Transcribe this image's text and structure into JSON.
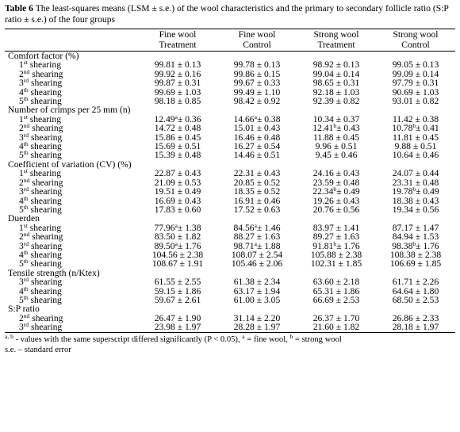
{
  "caption": {
    "label": "Table 6",
    "text": "The least-squares means (LSM ± s.e.) of the wool characteristics and the primary to secondary follicle ratio (S:P ratio ± s.e.) of the four groups"
  },
  "headers": [
    [
      "",
      ""
    ],
    [
      "Fine wool",
      "Treatment"
    ],
    [
      "Fine wool",
      "Control"
    ],
    [
      "Strong wool",
      "Treatment"
    ],
    [
      "Strong wool",
      "Control"
    ]
  ],
  "sections": [
    {
      "title": "Comfort factor (%)",
      "rows": [
        {
          "n": "1",
          "sup": "st",
          "values": [
            "99.81 ± 0.13",
            "99.78 ± 0.13",
            "98.92 ± 0.13",
            "99.05 ± 0.13"
          ]
        },
        {
          "n": "2",
          "sup": "nd",
          "values": [
            "99.92 ± 0.16",
            "99.86 ± 0.15",
            "99.04 ± 0.14",
            "99.09 ± 0.14"
          ]
        },
        {
          "n": "3",
          "sup": "rd",
          "values": [
            "99.87 ± 0.31",
            "99.67 ± 0.33",
            "98.65 ± 0.31",
            "97.79 ± 0.31"
          ]
        },
        {
          "n": "4",
          "sup": "th",
          "values": [
            "99.69 ± 1.03",
            "99.49 ± 1.10",
            "92.18 ± 1.03",
            "90.69 ± 1.03"
          ]
        },
        {
          "n": "5",
          "sup": "th",
          "values": [
            "98.18 ± 0.85",
            "98.42 ± 0.92",
            "92.39 ± 0.82",
            "93.01 ± 0.82"
          ]
        }
      ]
    },
    {
      "title": "Number of crimps per 25 mm (n)",
      "rows": [
        {
          "n": "1",
          "sup": "st",
          "values": [
            "12.49ᵃ± 0.36",
            "14.66ᵃ± 0.38",
            "10.34 ± 0.37",
            "11.42 ± 0.38"
          ]
        },
        {
          "n": "2",
          "sup": "nd",
          "values": [
            "14.72 ± 0.48",
            "15.01 ± 0.43",
            "12.41ᵇ± 0.43",
            "10.78ᵇ± 0.41"
          ]
        },
        {
          "n": "3",
          "sup": "rd",
          "values": [
            "15.86 ± 0.45",
            "16.46 ± 0.48",
            "11.88 ± 0.45",
            "11.81 ± 0.45"
          ]
        },
        {
          "n": "4",
          "sup": "th",
          "values": [
            "15.69 ± 0.51",
            "16.27 ± 0.54",
            "9.96 ± 0.51",
            "9.88 ± 0.51"
          ]
        },
        {
          "n": "5",
          "sup": "th",
          "values": [
            "15.39 ± 0.48",
            "14.46 ± 0.51",
            "9.45 ± 0.46",
            "10.64 ± 0.46"
          ]
        }
      ]
    },
    {
      "title": "Coefficient of variation (CV) (%)",
      "rows": [
        {
          "n": "1",
          "sup": "st",
          "values": [
            "22.87 ± 0.43",
            "22.31 ± 0.43",
            "24.16 ± 0.43",
            "24.07 ± 0.44"
          ]
        },
        {
          "n": "2",
          "sup": "nd",
          "values": [
            "21.09 ± 0.53",
            "20.85 ± 0.52",
            "23.59 ± 0.48",
            "23.31 ± 0.48"
          ]
        },
        {
          "n": "3",
          "sup": "rd",
          "values": [
            "19.51 ± 0.49",
            "18.35 ± 0.52",
            "22.34ᵇ± 0.49",
            "19.78ᵇ± 0.49"
          ]
        },
        {
          "n": "4",
          "sup": "th",
          "values": [
            "16.69 ± 0.43",
            "16.91 ± 0.46",
            "19.26 ± 0.43",
            "18.38 ± 0.43"
          ]
        },
        {
          "n": "5",
          "sup": "th",
          "values": [
            "17.83 ± 0.60",
            "17.52 ± 0.63",
            "20.76 ± 0.56",
            "19.34 ± 0.56"
          ]
        }
      ]
    },
    {
      "title": "Duerden",
      "rows": [
        {
          "n": "1",
          "sup": "st",
          "values": [
            "77.96ᵃ± 1.38",
            "84.56ᵃ± 1.46",
            "83.97 ± 1.41",
            "87.17 ± 1.47"
          ]
        },
        {
          "n": "2",
          "sup": "nd",
          "values": [
            "83.50 ± 1.82",
            "88.27 ± 1.63",
            "89.27 ± 1.63",
            "84.94 ± 1.53"
          ]
        },
        {
          "n": "3",
          "sup": "rd",
          "values": [
            "89.50ᵃ± 1.76",
            "98.71ᵃ± 1.88",
            "91.81ᵇ± 1.76",
            "98.38ᵇ± 1.76"
          ]
        },
        {
          "n": "4",
          "sup": "th",
          "values": [
            "104.56 ± 2.38",
            "108.07 ± 2.54",
            "105.88 ± 2.38",
            "108.38 ± 2.38"
          ]
        },
        {
          "n": "5",
          "sup": "th",
          "values": [
            "108.67 ± 1.91",
            "105.46 ± 2.06",
            "102.31 ± 1.85",
            "106.69 ± 1.85"
          ]
        }
      ]
    },
    {
      "title": "Tensile strength (n/Ktex)",
      "rows": [
        {
          "n": "3",
          "sup": "rd",
          "values": [
            "61.55 ± 2.55",
            "61.38 ± 2.34",
            "63.60 ± 2.18",
            "61.71 ± 2.26"
          ]
        },
        {
          "n": "4",
          "sup": "th",
          "values": [
            "59.15 ± 1.86",
            "63.17 ± 1.94",
            "65.31 ± 1.86",
            "64.64 ± 1.80"
          ]
        },
        {
          "n": "5",
          "sup": "th",
          "values": [
            "59.67 ± 2.61",
            "61.00 ± 3.05",
            "66.69 ± 2.53",
            "68.50 ± 2.53"
          ]
        }
      ]
    },
    {
      "title": "S:P ratio",
      "rows": [
        {
          "n": "2",
          "sup": "nd",
          "values": [
            "26.47 ± 1.90",
            "31.14 ± 2.20",
            "26.37 ± 1.70",
            "26.86 ± 2.33"
          ]
        },
        {
          "n": "3",
          "sup": "rd",
          "values": [
            "23.98 ± 1.97",
            "28.28 ± 1.97",
            "21.60 ± 1.82",
            "28.18 ± 1.97"
          ]
        }
      ]
    }
  ],
  "row_word": "shearing",
  "footnotes": [
    "a, b - values with the same superscript differed significantly (P < 0.05), a = fine wool, b = strong wool",
    "s.e. – standard error"
  ]
}
